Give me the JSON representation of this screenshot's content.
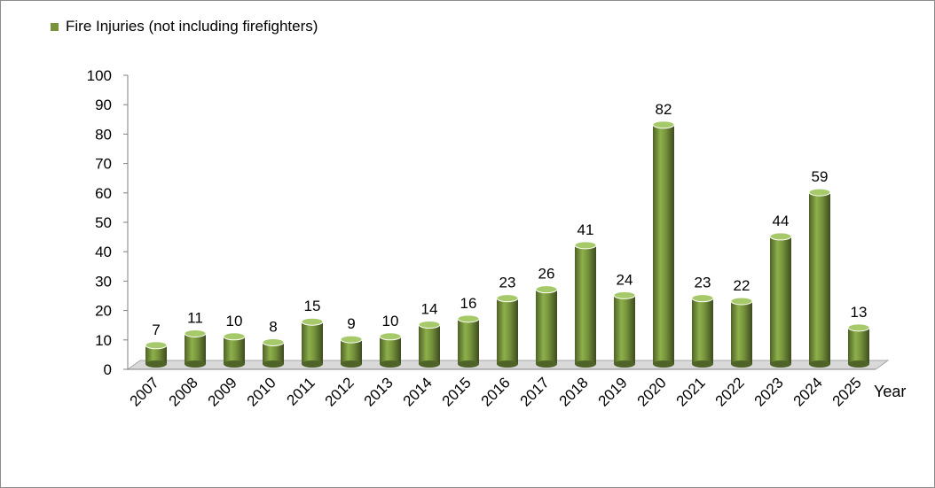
{
  "chart_data": {
    "type": "bar",
    "categories": [
      "2007",
      "2008",
      "2009",
      "2010",
      "2011",
      "2012",
      "2013",
      "2014",
      "2015",
      "2016",
      "2017",
      "2018",
      "2019",
      "2020",
      "2021",
      "2022",
      "2023",
      "2024",
      "2025"
    ],
    "series": [
      {
        "name": "Fire Injuries (not including firefighters)",
        "values": [
          7,
          11,
          10,
          8,
          15,
          9,
          10,
          14,
          16,
          23,
          26,
          41,
          24,
          82,
          23,
          22,
          44,
          59,
          13
        ]
      }
    ],
    "xlabel": "Year",
    "ylabel": "",
    "ylim": [
      0,
      100
    ],
    "yticks": [
      0,
      10,
      20,
      30,
      40,
      50,
      60,
      70,
      80,
      90,
      100
    ],
    "grid": false,
    "legend_position": "top-left",
    "data_labels": true,
    "bar_style": "3d-cylinder",
    "colors": {
      "bar": "#77933c",
      "bar_light": "#a6c96a",
      "bar_dark": "#4f6228",
      "floor": "#d9d9d9"
    }
  }
}
